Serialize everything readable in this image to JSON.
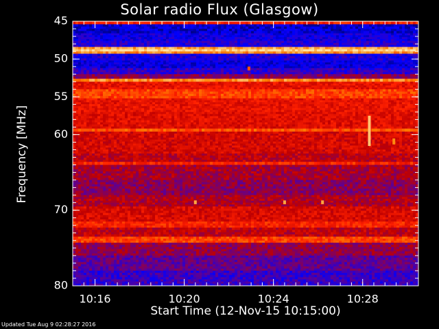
{
  "chart_data": {
    "type": "heatmap",
    "title": "Solar radio Flux (Glasgow)",
    "xlabel": "Start Time (12-Nov-15 10:15:00)",
    "ylabel": "Frequency [MHz]",
    "y_axis": {
      "range": [
        45,
        80
      ],
      "inverted": true,
      "major_ticks": [
        45,
        50,
        55,
        60,
        70,
        80
      ],
      "minor_tick_step": 1
    },
    "x_axis": {
      "range_minutes": [
        0,
        15.5
      ],
      "tick_labels": [
        {
          "label": "10:16",
          "minute": 1
        },
        {
          "label": "10:20",
          "minute": 5
        },
        {
          "label": "10:24",
          "minute": 9
        },
        {
          "label": "10:28",
          "minute": 13
        }
      ],
      "minor_tick_step_minutes": 0.5
    },
    "colormap": [
      "#000060",
      "#0000ff",
      "#600090",
      "#c00000",
      "#ff2000",
      "#ff8000",
      "#ffe0a0"
    ],
    "bands": [
      {
        "from": 45.0,
        "to": 45.4,
        "level": 0.65
      },
      {
        "from": 45.4,
        "to": 46.6,
        "level": 0.12
      },
      {
        "from": 46.6,
        "to": 47.6,
        "level": 0.18
      },
      {
        "from": 47.6,
        "to": 48.4,
        "level": 0.22
      },
      {
        "from": 48.4,
        "to": 48.7,
        "level": 0.9
      },
      {
        "from": 48.7,
        "to": 49.0,
        "level": 0.98
      },
      {
        "from": 49.0,
        "to": 49.3,
        "level": 0.85
      },
      {
        "from": 49.3,
        "to": 50.2,
        "level": 0.2
      },
      {
        "from": 50.2,
        "to": 51.2,
        "level": 0.15
      },
      {
        "from": 51.2,
        "to": 52.0,
        "level": 0.25
      },
      {
        "from": 52.0,
        "to": 52.6,
        "level": 0.4
      },
      {
        "from": 52.6,
        "to": 53.0,
        "level": 0.85
      },
      {
        "from": 53.0,
        "to": 54.0,
        "level": 0.6
      },
      {
        "from": 54.0,
        "to": 55.2,
        "level": 0.72
      },
      {
        "from": 55.2,
        "to": 57.0,
        "level": 0.6
      },
      {
        "from": 57.0,
        "to": 59.2,
        "level": 0.58
      },
      {
        "from": 59.2,
        "to": 59.6,
        "level": 0.75
      },
      {
        "from": 59.6,
        "to": 62.5,
        "level": 0.55
      },
      {
        "from": 62.5,
        "to": 63.6,
        "level": 0.5
      },
      {
        "from": 63.6,
        "to": 64.0,
        "level": 0.66
      },
      {
        "from": 64.0,
        "to": 66.0,
        "level": 0.45
      },
      {
        "from": 66.0,
        "to": 68.0,
        "level": 0.4
      },
      {
        "from": 68.0,
        "to": 69.5,
        "level": 0.47
      },
      {
        "from": 69.5,
        "to": 71.5,
        "level": 0.56
      },
      {
        "from": 71.5,
        "to": 72.3,
        "level": 0.66
      },
      {
        "from": 72.3,
        "to": 73.5,
        "level": 0.5
      },
      {
        "from": 73.5,
        "to": 74.3,
        "level": 0.72
      },
      {
        "from": 74.3,
        "to": 76.0,
        "level": 0.42
      },
      {
        "from": 76.0,
        "to": 78.0,
        "level": 0.33
      },
      {
        "from": 78.0,
        "to": 80.0,
        "level": 0.26
      }
    ],
    "bursts": [
      {
        "minute": 13.3,
        "from": 57.5,
        "to": 61.5,
        "level": 0.95
      },
      {
        "minute": 14.4,
        "from": 60.5,
        "to": 61.3,
        "level": 0.85
      },
      {
        "minute": 5.5,
        "from": 68.7,
        "to": 69.2,
        "level": 0.9
      },
      {
        "minute": 9.5,
        "from": 68.7,
        "to": 69.2,
        "level": 0.9
      },
      {
        "minute": 11.2,
        "from": 68.7,
        "to": 69.2,
        "level": 0.9
      },
      {
        "minute": 7.9,
        "from": 51.0,
        "to": 51.5,
        "level": 0.75
      }
    ]
  },
  "footer": {
    "updated_text": "Updated Tue Aug  9 02:28:27 2016"
  }
}
